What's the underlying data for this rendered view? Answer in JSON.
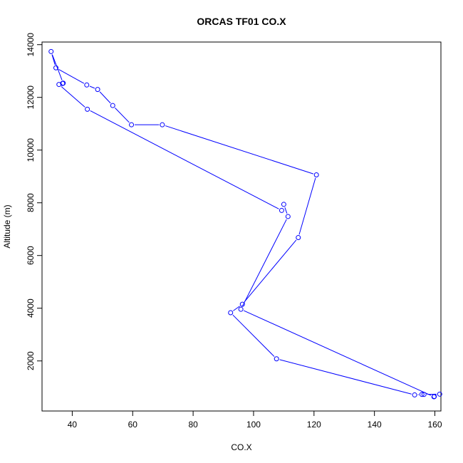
{
  "chart_data": {
    "type": "line",
    "title": "ORCAS TF01 CO.X",
    "xlabel": "CO.X",
    "ylabel": "Altitude (m)",
    "xlim": [
      30,
      162
    ],
    "ylim": [
      100,
      14100
    ],
    "x_ticks": [
      40,
      60,
      80,
      100,
      120,
      140,
      160
    ],
    "y_ticks": [
      2000,
      4000,
      6000,
      8000,
      10000,
      12000,
      14000
    ],
    "grid": false,
    "legend": "none",
    "colors": {
      "series": "#0000ff",
      "axes": "#000000",
      "background": "#ffffff"
    },
    "series": [
      {
        "marker": "open-circle",
        "x": [
          159.8,
          161.6,
          156.4,
          155.7,
          153.3,
          107.6,
          92.4,
          96.3,
          114.8,
          120.8,
          69.8,
          59.6,
          53.4,
          48.4,
          44.8,
          34.6,
          33.0,
          37.0,
          36.8,
          35.6,
          45.0,
          109.3,
          110.0,
          111.4,
          95.8,
          159.7
        ],
        "y": [
          650,
          740,
          730,
          730,
          710,
          2080,
          3830,
          4150,
          6680,
          9060,
          10960,
          10960,
          11690,
          12300,
          12470,
          13120,
          13740,
          12540,
          12530,
          12490,
          11550,
          7710,
          7940,
          7480,
          3960,
          640
        ]
      }
    ]
  }
}
